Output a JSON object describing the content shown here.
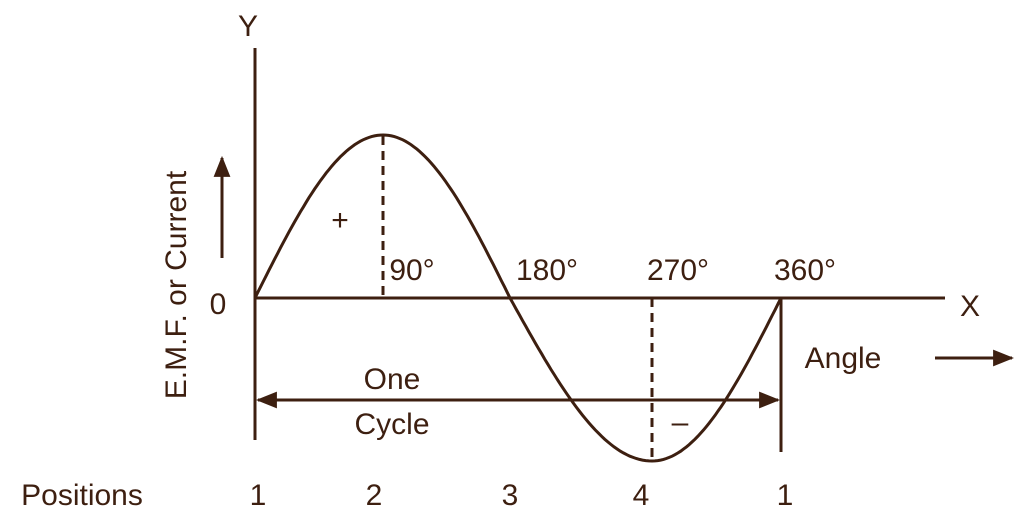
{
  "axes": {
    "y_label": "Y",
    "x_label": "X",
    "origin": "0",
    "y_title": "E.M.F. or Current"
  },
  "angles": [
    "90°",
    "180°",
    "270°",
    "360°"
  ],
  "signs": {
    "positive": "+",
    "negative": "–"
  },
  "cycle": {
    "line1": "One",
    "line2": "Cycle"
  },
  "angle_label": "Angle",
  "positions": {
    "label": "Positions",
    "items": [
      "1",
      "2",
      "3",
      "4",
      "1"
    ]
  }
}
